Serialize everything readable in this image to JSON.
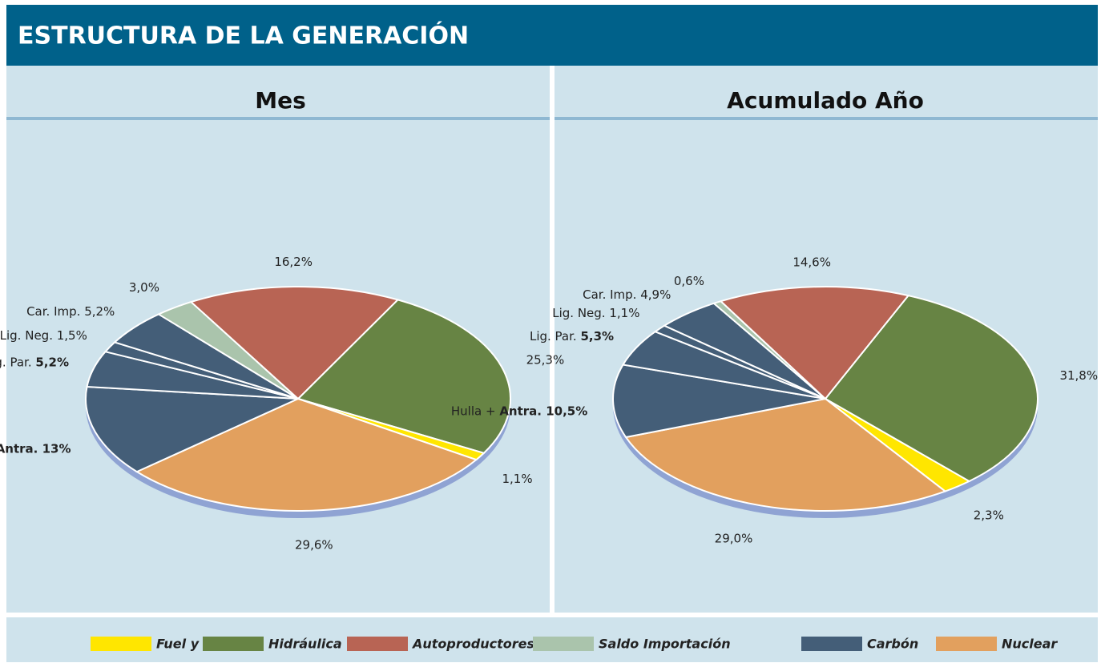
{
  "header": {
    "title": "ESTRUCTURA DE LA GENERACIÓN"
  },
  "chart_data": [
    {
      "type": "pie",
      "title": "Mes",
      "categories": [
        null,
        null,
        null,
        "Hulla +",
        "Lig. Par.",
        "Lig. Neg.",
        "Car. Imp.",
        null,
        null
      ],
      "values": [
        25.3,
        1.1,
        29.6,
        13,
        5.2,
        1.5,
        5.2,
        3.0,
        16.2
      ],
      "value_labels": [
        "25,3%",
        "1,1%",
        "29,6%",
        "Antra. 13%",
        "5,2%",
        "1,5%",
        "5,2%",
        "3,0%",
        "16,2%"
      ],
      "colors": [
        "#678444",
        "#ffe600",
        "#e2a05e",
        "#445e78",
        "#445e78",
        "#445e78",
        "#445e78",
        "#aac4ac",
        "#b86454"
      ]
    },
    {
      "type": "pie",
      "title": "Acumulado Año",
      "categories": [
        null,
        null,
        null,
        "Hulla +",
        "Lig. Par.",
        "Lig. Neg.",
        "Car. Imp.",
        null,
        null
      ],
      "values": [
        31.8,
        2.3,
        29.0,
        10.5,
        5.3,
        1.1,
        4.9,
        0.6,
        14.6
      ],
      "value_labels": [
        "31,8%",
        "2,3%",
        "29,0%",
        "Antra. 10,5%",
        "5,3%",
        "1,1%",
        "4,9%",
        "0,6%",
        "14,6%"
      ],
      "colors": [
        "#678444",
        "#ffe600",
        "#e2a05e",
        "#445e78",
        "#445e78",
        "#445e78",
        "#445e78",
        "#aac4ac",
        "#b86454"
      ]
    }
  ],
  "legend": {
    "items": [
      {
        "name": "Fuel y Gas",
        "color": "#ffe600"
      },
      {
        "name": "Hidráulica",
        "color": "#678444"
      },
      {
        "name": "Autoproductores",
        "color": "#b86454"
      },
      {
        "name": "Saldo Importación",
        "color": "#aac4ac"
      },
      {
        "name": "Carbón",
        "color": "#445e78"
      },
      {
        "name": "Nuclear",
        "color": "#e2a05e"
      }
    ]
  }
}
